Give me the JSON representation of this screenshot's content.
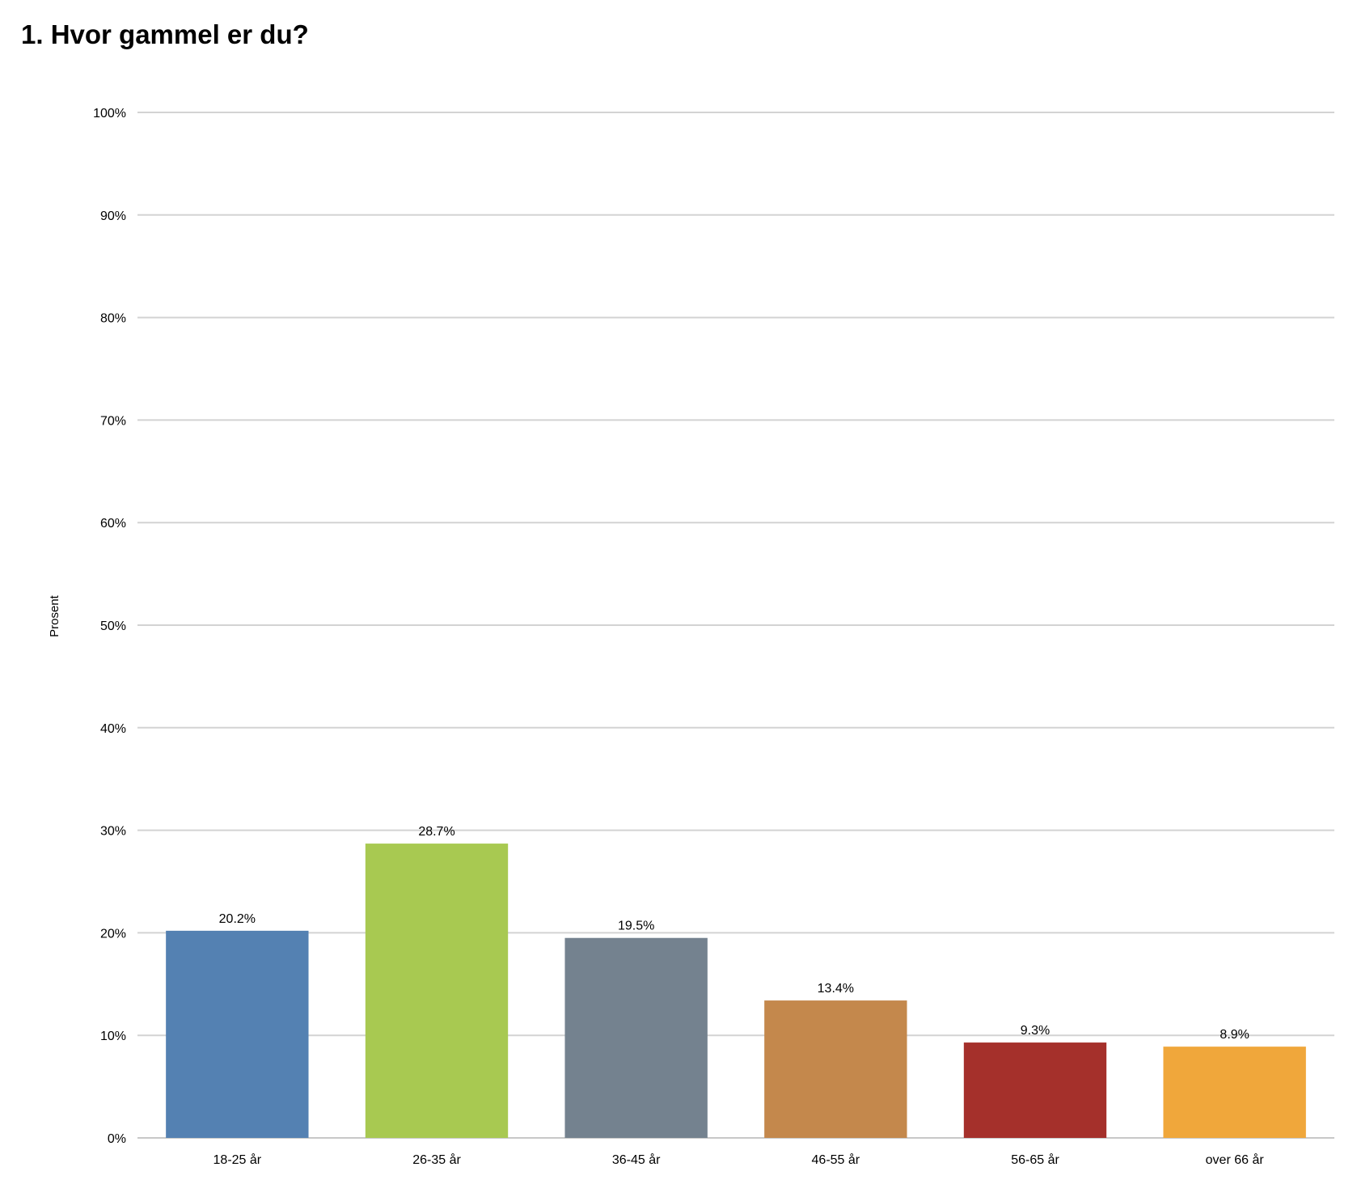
{
  "chart_data": {
    "type": "bar",
    "title": "1. Hvor gammel er du?",
    "ylabel": "Prosent",
    "xlabel": "",
    "ylim": [
      0,
      100
    ],
    "yticks": [
      "0%",
      "10%",
      "20%",
      "30%",
      "40%",
      "50%",
      "60%",
      "70%",
      "80%",
      "90%",
      "100%"
    ],
    "categories": [
      "18-25 år",
      "26-35 år",
      "36-45 år",
      "46-55 år",
      "56-65 år",
      "over 66 år"
    ],
    "values": [
      20.2,
      28.7,
      19.5,
      13.4,
      9.3,
      8.9
    ],
    "data_labels": [
      "20.2%",
      "28.7%",
      "19.5%",
      "13.4%",
      "9.3%",
      "8.9%"
    ],
    "colors": [
      "#5481b2",
      "#a8c951",
      "#74828f",
      "#c4884c",
      "#a5302b",
      "#f0a73b"
    ],
    "grid": true,
    "legend": "none"
  }
}
